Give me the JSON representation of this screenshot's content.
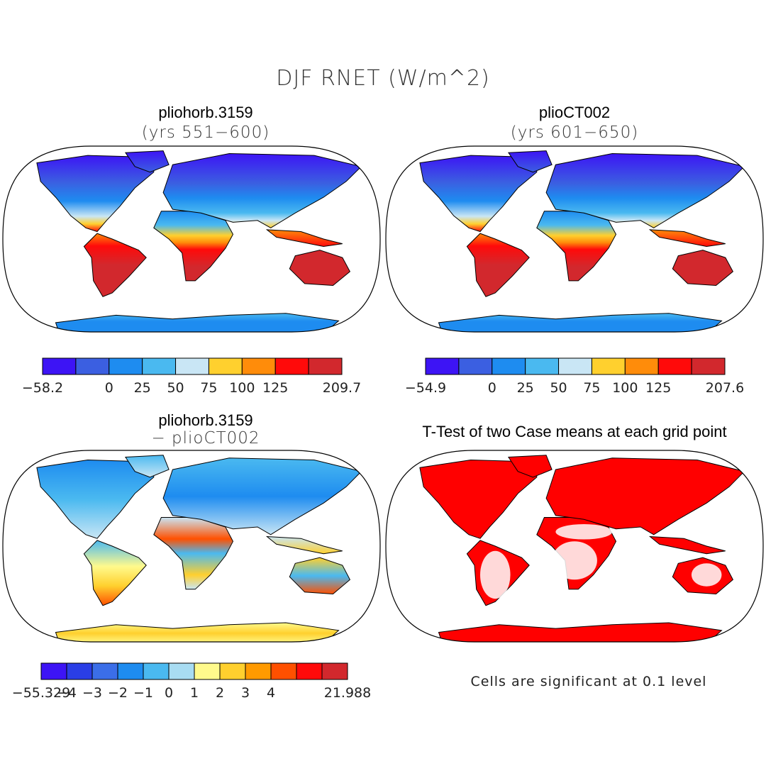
{
  "title": "DJF RNET (W/m^2)",
  "panels": [
    {
      "id": "tl",
      "title": "pliohorb.3159",
      "subtitle": "(yrs 551−600)"
    },
    {
      "id": "tr",
      "title": "plioCT002",
      "subtitle": "(yrs 601−650)"
    },
    {
      "id": "bl",
      "title": "pliohorb.3159",
      "subtitle": "− plioCT002"
    },
    {
      "id": "br",
      "title": "T-Test of two Case means at each grid point",
      "subtitle": ""
    }
  ],
  "note": "Cells are significant at 0.1 level",
  "colors": {
    "c1": "#3d14f5",
    "c2": "#3b5fe1",
    "c3": "#1e8cf0",
    "c4": "#4ab9f0",
    "c5": "#c9e6f5",
    "c6": "#ffd02e",
    "c7": "#ff8c0a",
    "c8": "#ff0a0a",
    "c9": "#d2282d",
    "d_y": "#fffa8c",
    "d_o2": "#ff5000",
    "sig": "#ff0000"
  },
  "chart_data": [
    {
      "type": "heatmap",
      "title": "pliohorb.3159 (yrs 551−600)",
      "variable": "DJF RNET (W/m^2)",
      "colorbar": {
        "min": -58.2,
        "max": 209.7,
        "levels": [
          0,
          25,
          50,
          75,
          100,
          125
        ],
        "colors": [
          "#3d14f5",
          "#3b5fe1",
          "#1e8cf0",
          "#4ab9f0",
          "#c9e6f5",
          "#ffd02e",
          "#ff8c0a",
          "#ff0a0a",
          "#d2282d"
        ],
        "labels": [
          "−58.2",
          "0",
          "25",
          "50",
          "75",
          "100",
          "125",
          "209.7"
        ]
      }
    },
    {
      "type": "heatmap",
      "title": "plioCT002 (yrs 601−650)",
      "variable": "DJF RNET (W/m^2)",
      "colorbar": {
        "min": -54.9,
        "max": 207.6,
        "levels": [
          0,
          25,
          50,
          75,
          100,
          125
        ],
        "colors": [
          "#3d14f5",
          "#3b5fe1",
          "#1e8cf0",
          "#4ab9f0",
          "#c9e6f5",
          "#ffd02e",
          "#ff8c0a",
          "#ff0a0a",
          "#d2282d"
        ],
        "labels": [
          "−54.9",
          "0",
          "25",
          "50",
          "75",
          "100",
          "125",
          "207.6"
        ]
      }
    },
    {
      "type": "heatmap",
      "title": "pliohorb.3159 − plioCT002",
      "variable": "DJF RNET difference (W/m^2)",
      "colorbar": {
        "min": -55.329,
        "max": 21.988,
        "levels": [
          -4,
          -3,
          -2,
          -1,
          0,
          1,
          2,
          3,
          4
        ],
        "colors": [
          "#3d14f5",
          "#2a3ee6",
          "#3b6ee8",
          "#1e8cf0",
          "#4ab9f0",
          "#a8dcf2",
          "#fffa8c",
          "#ffd02e",
          "#ff9a00",
          "#ff5000",
          "#ff0a0a",
          "#d2282d"
        ],
        "labels": [
          "−55.329",
          "−4",
          "−3",
          "−2",
          "−1",
          "0",
          "1",
          "2",
          "3",
          "4",
          "21.988"
        ]
      }
    },
    {
      "type": "heatmap",
      "title": "T-Test of two Case means at each grid point",
      "significance_level": 0.1,
      "note": "Cells are significant at 0.1 level"
    }
  ]
}
